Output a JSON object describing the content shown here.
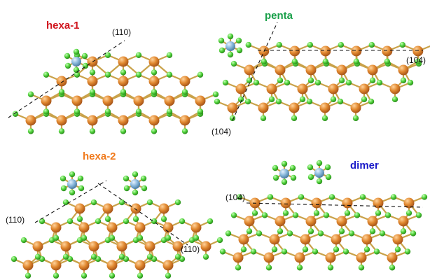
{
  "panels": [
    {
      "id": "hexa-1",
      "title": "hexa-1",
      "title_color": "#d0141c",
      "plane_labels": [
        "(110)"
      ]
    },
    {
      "id": "penta",
      "title": "penta",
      "title_color": "#1aa04a",
      "plane_labels": [
        "(104)",
        "(104)"
      ]
    },
    {
      "id": "hexa-2",
      "title": "hexa-2",
      "title_color": "#f07a1c",
      "plane_labels": [
        "(110)",
        "(110)"
      ]
    },
    {
      "id": "dimer",
      "title": "dimer",
      "title_color": "#1818c8",
      "plane_labels": [
        "(104)"
      ]
    }
  ],
  "colors": {
    "metal_atom": "#d9822b",
    "ligand_atom": "#4fd13a",
    "dopant_atom": "#7fb2d9",
    "bond": "#c9a24a",
    "guide_line": "#111111"
  }
}
